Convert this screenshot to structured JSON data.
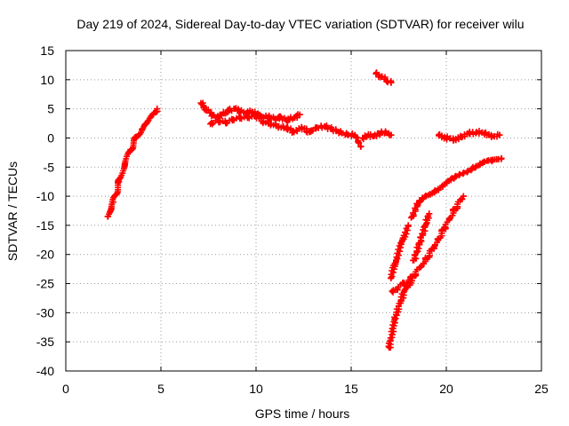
{
  "chart_data": {
    "type": "scatter",
    "title": "Day 219 of 2024, Sidereal Day-to-day VTEC variation (SDTVAR) for receiver wilu",
    "xlabel": "GPS time / hours",
    "ylabel": "SDTVAR / TECUs",
    "xlim": [
      0,
      25
    ],
    "ylim": [
      -40,
      15
    ],
    "xticks": [
      0,
      5,
      10,
      15,
      20,
      25
    ],
    "yticks": [
      15,
      10,
      5,
      0,
      -5,
      -10,
      -15,
      -20,
      -25,
      -30,
      -35,
      -40
    ],
    "grid": true,
    "marker": "plus",
    "color": "#ff0000",
    "series": [
      {
        "x": [
          2.2,
          2.5,
          2.8,
          3.1,
          3.4,
          3.7,
          4.0,
          4.3,
          4.6,
          4.8
        ],
        "y": [
          -13.5,
          -11.0,
          -7.5,
          -4.5,
          -2.0,
          0.0,
          1.5,
          2.8,
          4.0,
          5.0
        ]
      },
      {
        "x": [
          7.1,
          7.4,
          7.7,
          8.0,
          8.3,
          8.6,
          8.9,
          9.2,
          9.5,
          9.8,
          10.1,
          10.4,
          10.7,
          11.0,
          11.3,
          11.6,
          12.0,
          12.3
        ],
        "y": [
          6.0,
          4.8,
          4.0,
          3.5,
          4.2,
          4.8,
          5.0,
          4.6,
          4.3,
          4.5,
          4.0,
          3.6,
          3.6,
          3.3,
          3.6,
          3.0,
          3.5,
          4.0
        ]
      },
      {
        "x": [
          7.6,
          8.0,
          8.4,
          8.8,
          9.2,
          9.6,
          10.0,
          10.4,
          10.8,
          11.2,
          11.6
        ],
        "y": [
          2.4,
          3.0,
          2.6,
          3.2,
          3.5,
          3.6,
          3.8,
          2.8,
          2.4,
          2.0,
          1.6
        ]
      },
      {
        "x": [
          11.6,
          12.0,
          12.4,
          12.8,
          13.2,
          13.6,
          14.0,
          14.4,
          14.8,
          15.2,
          15.5
        ],
        "y": [
          1.8,
          1.0,
          1.8,
          1.0,
          1.8,
          2.0,
          1.5,
          1.0,
          0.6,
          0.5,
          -1.5
        ]
      },
      {
        "x": [
          15.6,
          15.9,
          16.2,
          16.5,
          16.8,
          17.1
        ],
        "y": [
          0.0,
          0.5,
          0.3,
          0.8,
          1.0,
          0.5
        ]
      },
      {
        "x": [
          16.3,
          16.6,
          16.9,
          17.1
        ],
        "y": [
          11.0,
          10.5,
          9.8,
          9.5
        ]
      },
      {
        "x": [
          19.6,
          20.0,
          20.4,
          20.8,
          21.2,
          21.6,
          22.0,
          22.4,
          22.8
        ],
        "y": [
          0.5,
          0.0,
          -0.3,
          0.2,
          0.8,
          1.0,
          0.8,
          0.3,
          0.5
        ]
      },
      {
        "x": [
          17.1,
          17.4,
          17.7,
          18.0
        ],
        "y": [
          -24.0,
          -20.5,
          -17.5,
          -15.0
        ]
      },
      {
        "x": [
          17.0,
          17.3,
          17.6,
          17.9,
          18.2
        ],
        "y": [
          -36.0,
          -31.0,
          -28.0,
          -25.5,
          -24.5
        ]
      },
      {
        "x": [
          18.2,
          18.5,
          18.9,
          19.4,
          19.9,
          20.4,
          20.9,
          21.4,
          21.9,
          22.4,
          22.9
        ],
        "y": [
          -13.5,
          -11.5,
          -10.0,
          -9.0,
          -8.0,
          -7.0,
          -6.0,
          -5.0,
          -4.3,
          -4.0,
          -3.5
        ]
      },
      {
        "x": [
          18.3,
          18.6,
          18.9,
          19.1
        ],
        "y": [
          -21.0,
          -18.0,
          -15.0,
          -13.0
        ]
      },
      {
        "x": [
          17.2,
          17.7,
          18.2,
          18.8,
          19.4,
          19.9,
          20.4,
          20.9
        ],
        "y": [
          -26.5,
          -25.0,
          -24.0,
          -21.5,
          -18.5,
          -15.5,
          -12.5,
          -10.0
        ]
      }
    ]
  }
}
